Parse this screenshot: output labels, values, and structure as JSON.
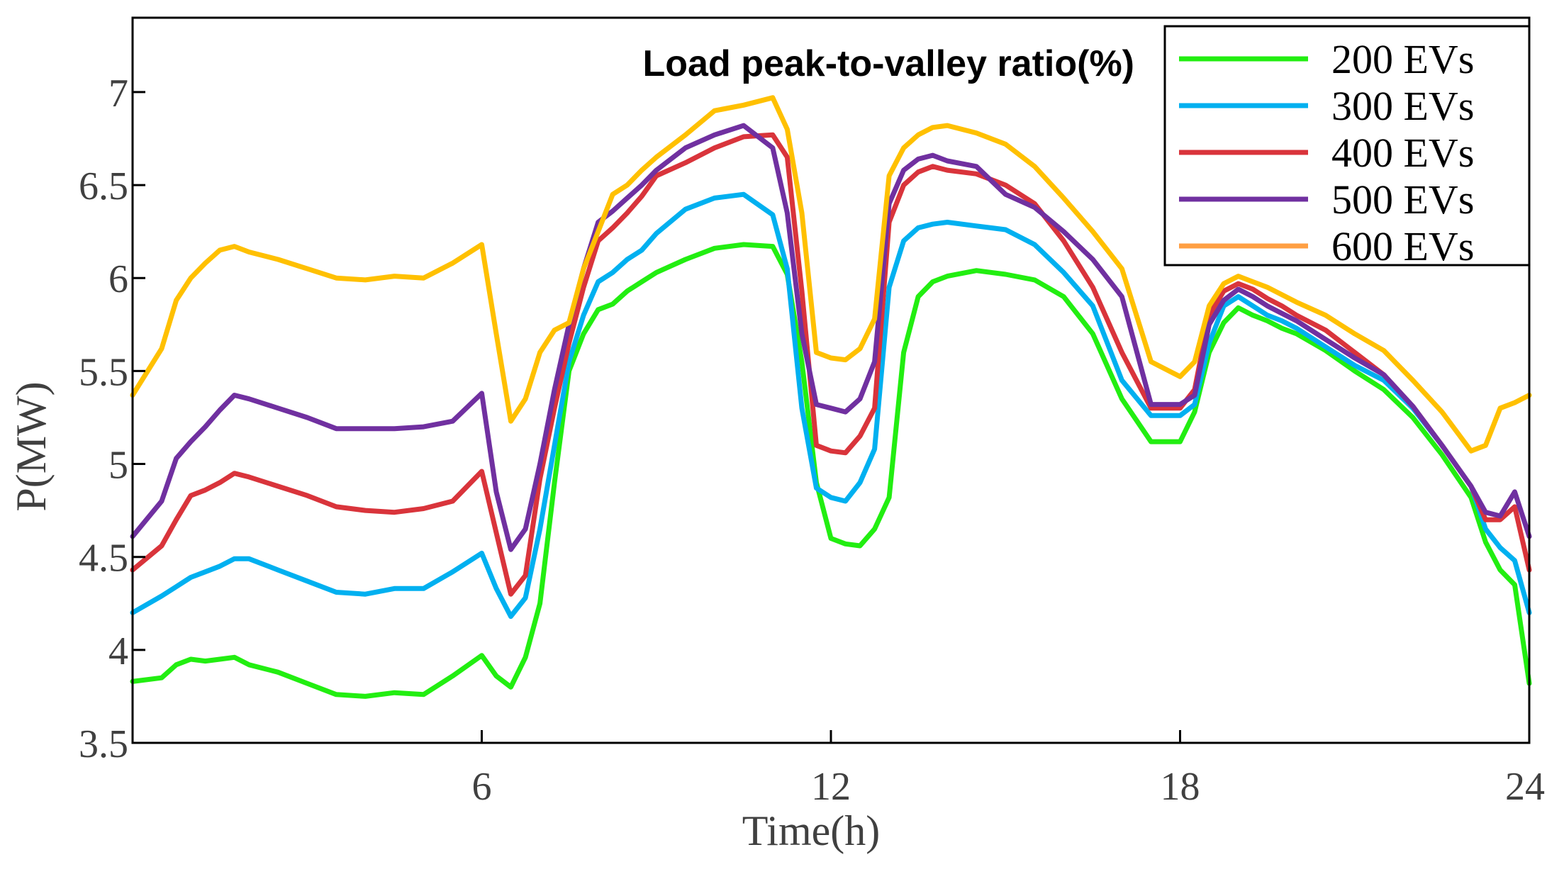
{
  "chart_data": {
    "type": "line",
    "title": "Load peak-to-valley ratio(%)",
    "xlabel": "Time(h)",
    "ylabel": "P(MW)",
    "xlim": [
      0,
      24
    ],
    "ylim": [
      3.5,
      7.4
    ],
    "xticks": [
      6,
      12,
      18,
      24
    ],
    "xtick_labels": [
      "6",
      "12",
      "18",
      "24"
    ],
    "yticks": [
      3.5,
      4,
      4.5,
      5,
      5.5,
      6,
      6.5,
      7
    ],
    "ytick_labels": [
      "3.5",
      "4",
      "4.5",
      "5",
      "5.5",
      "6",
      "6.5",
      "7"
    ],
    "legend_position": "top-right",
    "x": [
      0,
      0.5,
      0.75,
      1,
      1.25,
      1.5,
      1.75,
      2,
      2.5,
      3,
      3.5,
      4,
      4.5,
      5,
      5.5,
      6,
      6.25,
      6.5,
      6.75,
      7,
      7.25,
      7.5,
      7.75,
      8,
      8.25,
      8.5,
      8.75,
      9,
      9.5,
      10,
      10.5,
      11,
      11.25,
      11.5,
      11.75,
      12,
      12.25,
      12.5,
      12.75,
      13,
      13.25,
      13.5,
      13.75,
      14,
      14.5,
      15,
      15.5,
      16,
      16.5,
      17,
      17.5,
      18,
      18.25,
      18.5,
      18.75,
      19,
      19.25,
      19.5,
      19.75,
      20,
      20.5,
      21,
      21.5,
      22,
      22.5,
      23,
      23.25,
      23.5,
      23.75,
      24
    ],
    "series": [
      {
        "name": "200 EVs",
        "color": "#22ee11",
        "values": [
          3.83,
          3.85,
          3.92,
          3.95,
          3.94,
          3.95,
          3.96,
          3.92,
          3.88,
          3.82,
          3.76,
          3.75,
          3.77,
          3.76,
          3.86,
          3.97,
          3.86,
          3.8,
          3.96,
          4.25,
          4.9,
          5.5,
          5.7,
          5.83,
          5.86,
          5.93,
          5.98,
          6.03,
          6.1,
          6.16,
          6.18,
          6.17,
          6.02,
          5.55,
          4.9,
          4.6,
          4.57,
          4.56,
          4.65,
          4.82,
          5.6,
          5.9,
          5.98,
          6.01,
          6.04,
          6.02,
          5.99,
          5.9,
          5.7,
          5.35,
          5.12,
          5.12,
          5.28,
          5.6,
          5.76,
          5.84,
          5.8,
          5.77,
          5.73,
          5.7,
          5.61,
          5.5,
          5.4,
          5.25,
          5.05,
          4.82,
          4.58,
          4.43,
          4.35,
          3.82
        ]
      },
      {
        "name": "300 EVs",
        "color": "#00b0f0",
        "values": [
          4.2,
          4.29,
          4.34,
          4.39,
          4.42,
          4.45,
          4.49,
          4.49,
          4.43,
          4.37,
          4.31,
          4.3,
          4.33,
          4.33,
          4.42,
          4.52,
          4.33,
          4.18,
          4.28,
          4.65,
          5.1,
          5.55,
          5.8,
          5.98,
          6.03,
          6.1,
          6.15,
          6.24,
          6.37,
          6.43,
          6.45,
          6.34,
          6.05,
          5.3,
          4.87,
          4.82,
          4.8,
          4.9,
          5.08,
          5.95,
          6.2,
          6.27,
          6.29,
          6.3,
          6.28,
          6.26,
          6.18,
          6.03,
          5.85,
          5.45,
          5.26,
          5.26,
          5.32,
          5.65,
          5.85,
          5.9,
          5.85,
          5.8,
          5.77,
          5.73,
          5.63,
          5.53,
          5.45,
          5.3,
          5.1,
          4.88,
          4.65,
          4.55,
          4.48,
          4.2
        ]
      },
      {
        "name": "400 EVs",
        "color": "#d9343b",
        "values": [
          4.43,
          4.56,
          4.7,
          4.83,
          4.86,
          4.9,
          4.95,
          4.93,
          4.88,
          4.83,
          4.77,
          4.75,
          4.74,
          4.76,
          4.8,
          4.96,
          4.63,
          4.3,
          4.4,
          4.92,
          5.3,
          5.65,
          5.95,
          6.2,
          6.27,
          6.35,
          6.44,
          6.55,
          6.62,
          6.7,
          6.76,
          6.77,
          6.65,
          5.93,
          5.1,
          5.07,
          5.06,
          5.15,
          5.3,
          6.3,
          6.5,
          6.57,
          6.6,
          6.58,
          6.56,
          6.5,
          6.4,
          6.2,
          5.95,
          5.6,
          5.3,
          5.3,
          5.4,
          5.8,
          5.93,
          5.97,
          5.94,
          5.89,
          5.85,
          5.8,
          5.72,
          5.6,
          5.48,
          5.31,
          5.1,
          4.88,
          4.7,
          4.7,
          4.77,
          4.43
        ]
      },
      {
        "name": "500 EVs",
        "color": "#7030a0",
        "values": [
          4.61,
          4.8,
          5.03,
          5.12,
          5.2,
          5.29,
          5.37,
          5.35,
          5.3,
          5.25,
          5.19,
          5.19,
          5.19,
          5.2,
          5.23,
          5.38,
          4.85,
          4.54,
          4.65,
          5.0,
          5.4,
          5.75,
          6.05,
          6.3,
          6.36,
          6.43,
          6.5,
          6.58,
          6.7,
          6.77,
          6.82,
          6.7,
          6.35,
          5.7,
          5.32,
          5.3,
          5.28,
          5.35,
          5.55,
          6.4,
          6.58,
          6.64,
          6.66,
          6.63,
          6.6,
          6.45,
          6.38,
          6.25,
          6.1,
          5.9,
          5.32,
          5.32,
          5.37,
          5.75,
          5.88,
          5.94,
          5.9,
          5.85,
          5.81,
          5.77,
          5.67,
          5.57,
          5.48,
          5.31,
          5.1,
          4.88,
          4.74,
          4.72,
          4.85,
          4.61
        ]
      },
      {
        "name": "600 EVs",
        "color": "#ffc000",
        "legend_color": "#ff9f43",
        "values": [
          5.37,
          5.62,
          5.88,
          6.0,
          6.08,
          6.15,
          6.17,
          6.14,
          6.1,
          6.05,
          6.0,
          5.99,
          6.01,
          6.0,
          6.08,
          6.18,
          5.7,
          5.23,
          5.35,
          5.6,
          5.72,
          5.76,
          6.05,
          6.25,
          6.45,
          6.5,
          6.58,
          6.65,
          6.77,
          6.9,
          6.93,
          6.97,
          6.8,
          6.35,
          5.6,
          5.57,
          5.56,
          5.62,
          5.78,
          6.55,
          6.7,
          6.77,
          6.81,
          6.82,
          6.78,
          6.72,
          6.6,
          6.43,
          6.25,
          6.05,
          5.55,
          5.47,
          5.55,
          5.85,
          5.97,
          6.01,
          5.98,
          5.95,
          5.91,
          5.87,
          5.8,
          5.7,
          5.61,
          5.45,
          5.28,
          5.07,
          5.1,
          5.3,
          5.33,
          5.37
        ]
      }
    ]
  }
}
